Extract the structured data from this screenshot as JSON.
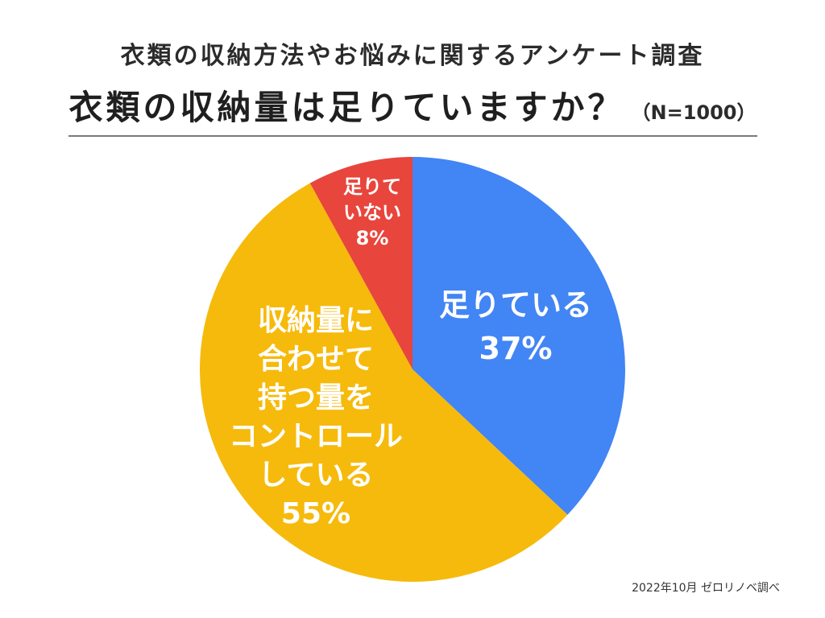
{
  "header": {
    "subtitle": "衣類の収納方法やお悩みに関するアンケート調査",
    "title": "衣類の収納量は足りていますか？",
    "sample_size": "（N=1000）"
  },
  "chart_data": {
    "type": "pie",
    "title": "衣類の収納量は足りていますか？",
    "slices": [
      {
        "label": "足りている",
        "value": 37,
        "color": "#4285F4",
        "display_lines": [
          "足りている",
          "37%"
        ]
      },
      {
        "label": "収納量に合わせて持つ量をコントロールしている",
        "value": 55,
        "color": "#F6BA0C",
        "display_lines": [
          "収納量に",
          "合わせて",
          "持つ量を",
          "コントロール",
          "している",
          "55%"
        ]
      },
      {
        "label": "足りていない",
        "value": 8,
        "color": "#E8453C",
        "display_lines": [
          "足りて",
          "いない",
          "8%"
        ]
      }
    ],
    "start": "12 o'clock",
    "direction": "clockwise"
  },
  "footer": {
    "source": "2022年10月 ゼロリノベ調べ"
  }
}
